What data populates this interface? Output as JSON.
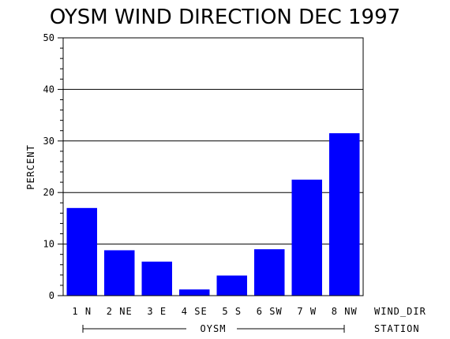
{
  "chart_data": {
    "type": "bar",
    "title": "OYSM WIND DIRECTION DEC 1997",
    "xlabel": "WIND_DIR",
    "ylabel": "PERCENT",
    "group_label": "STATION",
    "group_name": "OYSM",
    "categories": [
      "1 N",
      "2 NE",
      "3 E",
      "4 SE",
      "5 S",
      "6 SW",
      "7 W",
      "8 NW"
    ],
    "values": [
      17,
      8.8,
      6.6,
      1.2,
      3.9,
      9.0,
      22.5,
      31.5
    ],
    "ylim": [
      0,
      50
    ],
    "yticks": [
      "0",
      "10",
      "20",
      "30",
      "40",
      "50"
    ],
    "grid": true,
    "bar_color": "#0000ff"
  }
}
